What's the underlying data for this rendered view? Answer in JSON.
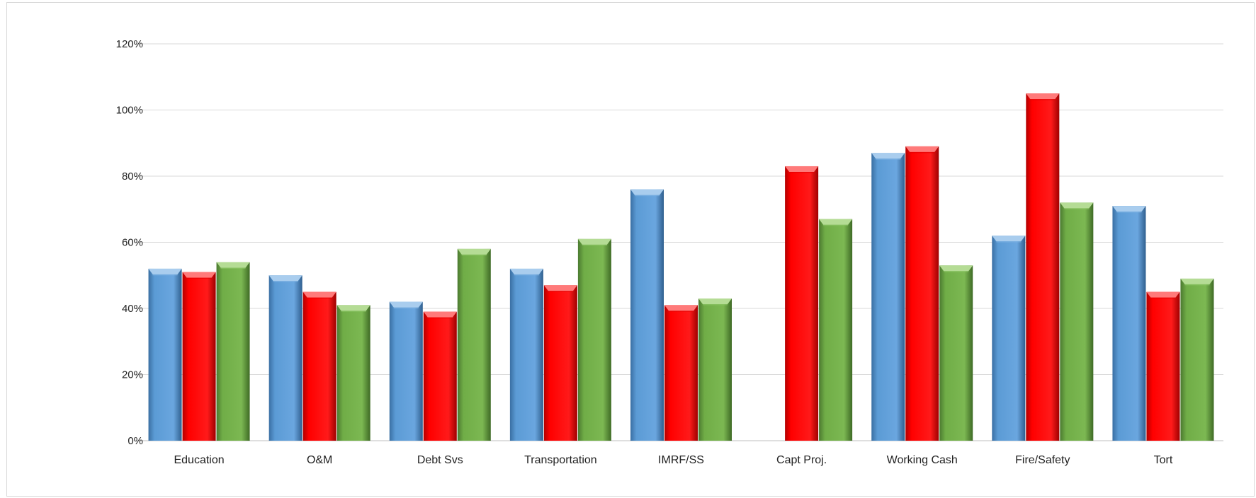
{
  "chart_data": {
    "type": "bar",
    "title": "",
    "xlabel": "",
    "ylabel": "",
    "categories": [
      "Education",
      "O&M",
      "Debt Svs",
      "Transportation",
      "IMRF/SS",
      "Capt Proj.",
      "Working Cash",
      "Fire/Safety",
      "Tort"
    ],
    "series": [
      {
        "color": "#5b9bd5",
        "values": [
          52,
          50,
          42,
          52,
          76,
          null,
          87,
          62,
          71
        ]
      },
      {
        "color": "#ff0000",
        "values": [
          51,
          45,
          39,
          47,
          41,
          83,
          89,
          105,
          45
        ]
      },
      {
        "color": "#70ad47",
        "values": [
          54,
          41,
          58,
          61,
          43,
          67,
          53,
          72,
          49
        ]
      }
    ],
    "ylim": [
      0,
      120
    ],
    "yticks": [
      "0%",
      "20%",
      "40%",
      "60%",
      "80%",
      "100%",
      "120%"
    ],
    "ytick_values": [
      0,
      20,
      40,
      60,
      80,
      100,
      120
    ],
    "grid": true,
    "legend": "none"
  }
}
